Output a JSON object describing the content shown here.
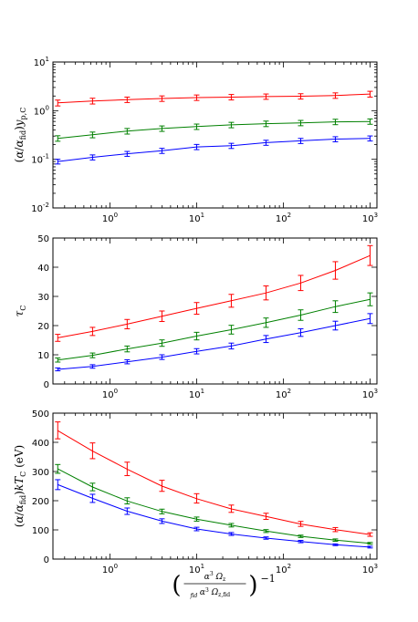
{
  "chart_data": [
    {
      "type": "line",
      "name": "top",
      "yscale": "log",
      "xscale": "log",
      "xlim": [
        0.22,
        1200
      ],
      "ylim": [
        0.01,
        10
      ],
      "yticks": [
        0.01,
        0.1,
        1,
        10
      ],
      "ytick_labels": [
        [
          "10",
          "-2"
        ],
        [
          "10",
          "-1"
        ],
        [
          "10",
          "0"
        ],
        [
          "10",
          "1"
        ]
      ],
      "ylabel_parts": [
        [
          "(",
          "n"
        ],
        [
          "α",
          "i"
        ],
        [
          "/",
          "n"
        ],
        [
          "α",
          "i"
        ],
        [
          "fid",
          "sub"
        ],
        [
          ")",
          "n"
        ],
        [
          "y",
          "i"
        ],
        [
          "p,C",
          "sub"
        ]
      ],
      "x": [
        0.25,
        0.63,
        1.58,
        3.98,
        10,
        25.1,
        63.1,
        158.5,
        398,
        1000
      ],
      "series": [
        {
          "color": "#ff0000",
          "values": [
            1.45,
            1.58,
            1.68,
            1.78,
            1.86,
            1.9,
            1.95,
            1.98,
            2.05,
            2.2
          ],
          "err_low": [
            1.25,
            1.37,
            1.47,
            1.55,
            1.62,
            1.66,
            1.71,
            1.73,
            1.79,
            1.9
          ],
          "err_high": [
            1.65,
            1.8,
            1.9,
            2.01,
            2.1,
            2.15,
            2.2,
            2.23,
            2.32,
            2.5
          ]
        },
        {
          "color": "#008000",
          "values": [
            0.27,
            0.32,
            0.38,
            0.43,
            0.47,
            0.51,
            0.54,
            0.56,
            0.59,
            0.6
          ],
          "err_low": [
            0.235,
            0.277,
            0.33,
            0.375,
            0.41,
            0.445,
            0.47,
            0.49,
            0.515,
            0.525
          ],
          "err_high": [
            0.305,
            0.363,
            0.43,
            0.485,
            0.53,
            0.575,
            0.61,
            0.63,
            0.665,
            0.675
          ]
        },
        {
          "color": "#0000ff",
          "values": [
            0.09,
            0.11,
            0.13,
            0.15,
            0.18,
            0.19,
            0.22,
            0.24,
            0.26,
            0.27
          ],
          "err_low": [
            0.08,
            0.097,
            0.115,
            0.132,
            0.158,
            0.167,
            0.194,
            0.211,
            0.229,
            0.238
          ],
          "err_high": [
            0.1,
            0.123,
            0.145,
            0.168,
            0.202,
            0.213,
            0.246,
            0.269,
            0.291,
            0.302
          ]
        }
      ]
    },
    {
      "type": "line",
      "name": "middle",
      "yscale": "linear",
      "xscale": "log",
      "xlim": [
        0.22,
        1200
      ],
      "ylim": [
        0,
        50
      ],
      "yticks": [
        0,
        10,
        20,
        30,
        40,
        50
      ],
      "ytick_labels": [
        [
          "0",
          ""
        ],
        [
          "10",
          ""
        ],
        [
          "20",
          ""
        ],
        [
          "30",
          ""
        ],
        [
          "40",
          ""
        ],
        [
          "50",
          ""
        ]
      ],
      "ylabel_parts": [
        [
          "τ",
          "i"
        ],
        [
          "C",
          "sub"
        ]
      ],
      "x": [
        0.25,
        0.63,
        1.58,
        3.98,
        10,
        25.1,
        63.1,
        158.5,
        398,
        1000
      ],
      "series": [
        {
          "color": "#ff0000",
          "values": [
            15.8,
            18,
            20.5,
            23.2,
            25.9,
            28.5,
            31.2,
            34.6,
            38.9,
            44
          ],
          "err_low": [
            14.6,
            16.6,
            18.9,
            21.4,
            23.9,
            26.3,
            28.8,
            32,
            35.9,
            40.6
          ],
          "err_high": [
            17,
            19.4,
            22.1,
            25,
            27.9,
            30.7,
            33.6,
            37.2,
            41.9,
            47.4
          ]
        },
        {
          "color": "#008000",
          "values": [
            8.2,
            9.8,
            12,
            14,
            16.4,
            18.6,
            21,
            23.6,
            26.5,
            29
          ],
          "err_low": [
            7.5,
            9,
            11,
            12.9,
            15.1,
            17.1,
            19.4,
            21.8,
            24.5,
            26.8
          ],
          "err_high": [
            8.9,
            10.6,
            13,
            15.1,
            17.7,
            20.1,
            22.6,
            25.4,
            28.5,
            31.2
          ]
        },
        {
          "color": "#0000ff",
          "values": [
            5,
            6,
            7.6,
            9.2,
            11.2,
            13,
            15.4,
            17.6,
            20,
            22.4
          ],
          "err_low": [
            4.5,
            5.4,
            6.9,
            8.4,
            10.3,
            12,
            14.2,
            16.3,
            18.5,
            20.7
          ],
          "err_high": [
            5.5,
            6.6,
            8.3,
            10,
            12.1,
            14,
            16.6,
            18.9,
            21.5,
            24.1
          ]
        }
      ]
    },
    {
      "type": "line",
      "name": "bottom",
      "yscale": "linear",
      "xscale": "log",
      "xlim": [
        0.22,
        1200
      ],
      "ylim": [
        0,
        500
      ],
      "yticks": [
        0,
        100,
        200,
        300,
        400,
        500
      ],
      "ytick_labels": [
        [
          "0",
          ""
        ],
        [
          "100",
          ""
        ],
        [
          "200",
          ""
        ],
        [
          "300",
          ""
        ],
        [
          "400",
          ""
        ],
        [
          "500",
          ""
        ]
      ],
      "ylabel_parts": [
        [
          "(",
          "n"
        ],
        [
          "α",
          "i"
        ],
        [
          "/",
          "n"
        ],
        [
          "α",
          "i"
        ],
        [
          "fid",
          "sub"
        ],
        [
          ")",
          "n"
        ],
        [
          "kT",
          "i"
        ],
        [
          "C",
          "sub"
        ],
        [
          " (eV)",
          "n"
        ]
      ],
      "xlabel": "(α³ Ωz / α³fid Ωz,fid)⁻¹",
      "x": [
        0.25,
        0.63,
        1.58,
        3.98,
        10,
        25.1,
        63.1,
        158.5,
        398,
        1000
      ],
      "series": [
        {
          "color": "#ff0000",
          "values": [
            440,
            370,
            308,
            250,
            207,
            172,
            146,
            120,
            101,
            84
          ],
          "err_low": [
            412,
            344,
            286,
            232,
            192,
            160,
            136,
            112,
            94,
            78
          ],
          "err_high": [
            470,
            398,
            332,
            270,
            224,
            185,
            157,
            129,
            108,
            90
          ]
        },
        {
          "color": "#008000",
          "values": [
            309,
            247,
            199,
            163,
            137,
            116,
            96,
            78,
            65,
            54
          ],
          "err_low": [
            294,
            234,
            189,
            155,
            130,
            110,
            91,
            74,
            61,
            51
          ],
          "err_high": [
            324,
            260,
            210,
            171,
            144,
            122,
            101,
            82,
            69,
            57
          ]
        },
        {
          "color": "#0000ff",
          "values": [
            255,
            208,
            164,
            130,
            103,
            86,
            72,
            60,
            49,
            41
          ],
          "err_low": [
            238,
            194,
            153,
            122,
            97,
            81,
            68,
            56,
            46,
            38
          ],
          "err_high": [
            272,
            222,
            175,
            138,
            109,
            91,
            76,
            64,
            52,
            44
          ]
        }
      ]
    }
  ],
  "x_tick_labels": [
    [
      "10",
      "0"
    ],
    [
      "10",
      "1"
    ],
    [
      "10",
      "2"
    ],
    [
      "10",
      "3"
    ]
  ],
  "x_tick_values": [
    1,
    10,
    100,
    1000
  ]
}
